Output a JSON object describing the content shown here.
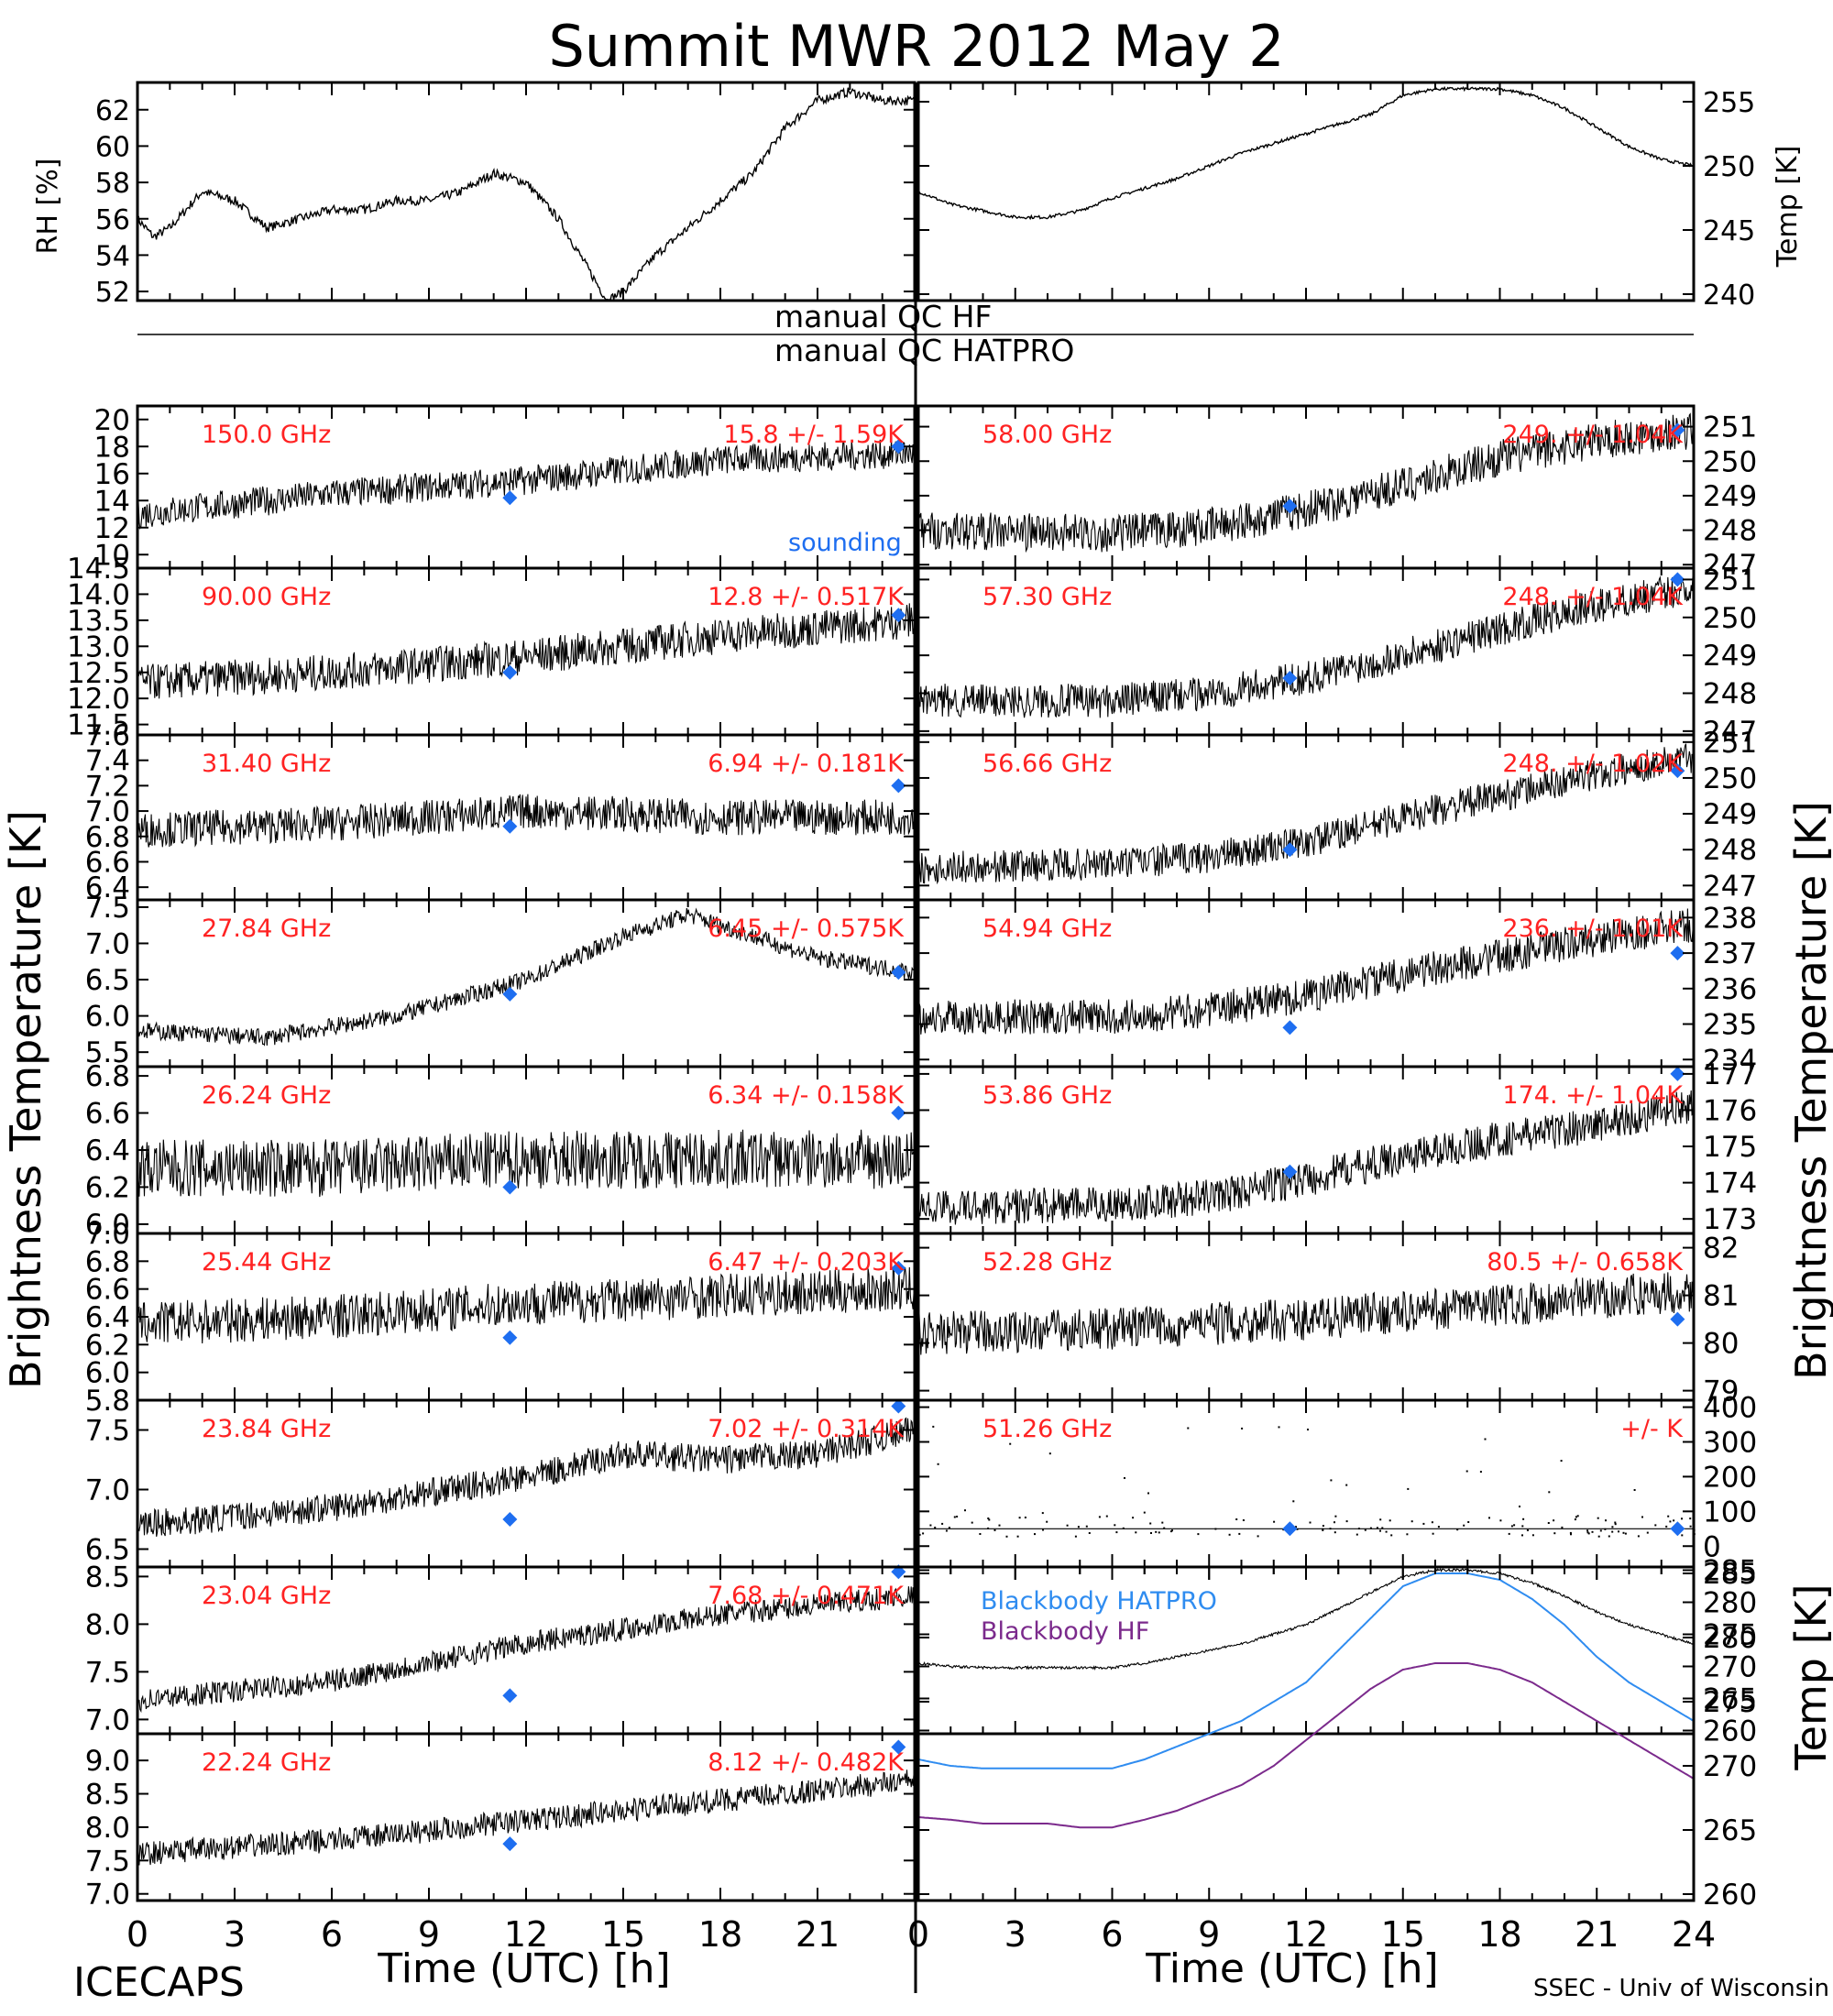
{
  "title": "Summit MWR 2012 May  2",
  "footer": {
    "left": "ICECAPS",
    "right": "SSEC - Univ of Wisconsin"
  },
  "axis_labels": {
    "left_tb": "Brightness Temperature [K]",
    "right_tb": "Brightness Temperature [K]",
    "rh": "RH [%]",
    "temp_top": "Temp [K]",
    "temp_bottom": "Temp [K]",
    "time_left": "Time (UTC) [h]",
    "time_right": "Time (UTC) [h]"
  },
  "qc": {
    "hf": "manual QC HF",
    "hatpro": "manual QC HATPRO"
  },
  "legend": {
    "sounding": "sounding",
    "bb_hatpro": "Blackbody HATPRO",
    "bb_hf": "Blackbody HF"
  },
  "colors": {
    "data": "#000000",
    "label": "#ff2222",
    "sounding": "#1e6ef0",
    "bb_hatpro": "#2f8cf0",
    "bb_hf": "#7b2a8c"
  },
  "x_ticks": [
    "0",
    "3",
    "6",
    "9",
    "12",
    "15",
    "18",
    "21",
    "24"
  ],
  "x_ticks_left": [
    "0",
    "3",
    "6",
    "9",
    "12",
    "15",
    "18",
    "21"
  ],
  "chart_data": [
    {
      "type": "line",
      "panel": "RH",
      "xlim": [
        0,
        24
      ],
      "ylim": [
        51.5,
        63.5
      ],
      "yticks": [
        52,
        54,
        56,
        58,
        60,
        62
      ],
      "series": [
        {
          "x": [
            0,
            0.5,
            1,
            2,
            3,
            4,
            5,
            6,
            7,
            8,
            9,
            10,
            11,
            12,
            13,
            14,
            14.5,
            15,
            16,
            17,
            18,
            19,
            20,
            21,
            22,
            23,
            24
          ],
          "values": [
            56,
            55,
            55.5,
            57.5,
            57,
            55.5,
            56,
            56.5,
            56.5,
            57,
            57,
            57.5,
            58.5,
            58,
            56,
            53,
            51.5,
            52,
            54,
            55.5,
            57,
            58.5,
            61,
            62.5,
            63,
            62.5,
            62.5
          ]
        }
      ]
    },
    {
      "type": "line",
      "panel": "Temp",
      "xlim": [
        0,
        24
      ],
      "ylim": [
        239.5,
        256.5
      ],
      "yticks": [
        240,
        245,
        250,
        255
      ],
      "series": [
        {
          "x": [
            0,
            1,
            2,
            3,
            4,
            5,
            6,
            8,
            10,
            12,
            14,
            15,
            16,
            17,
            18,
            19,
            20,
            21,
            22,
            23,
            24
          ],
          "values": [
            248,
            247,
            246.5,
            246,
            246,
            246.5,
            247.5,
            249,
            251,
            252.5,
            254,
            255.5,
            256,
            256,
            256,
            255.5,
            254.5,
            253,
            251.5,
            250.5,
            250
          ]
        }
      ]
    },
    {
      "type": "scatter",
      "freq": "150.0 GHz",
      "stat": "15.8 +/- 1.59K",
      "xlim": [
        0,
        24
      ],
      "ylim": [
        9,
        21
      ],
      "yticks": [
        10,
        12,
        14,
        16,
        18,
        20
      ],
      "series": [
        {
          "x": [
            0,
            6,
            12,
            18,
            24
          ],
          "values": [
            13,
            14.5,
            15.5,
            17,
            17.5
          ]
        }
      ],
      "sounding": [
        {
          "x": 11.5,
          "y": 14.2
        },
        {
          "x": 23.5,
          "y": 18
        }
      ]
    },
    {
      "type": "scatter",
      "freq": "90.00 GHz",
      "stat": "12.8 +/- 0.517K",
      "xlim": [
        0,
        24
      ],
      "ylim": [
        11.3,
        14.5
      ],
      "yticks": [
        11.5,
        12.0,
        12.5,
        13.0,
        13.5,
        14.0,
        14.5
      ],
      "series": [
        {
          "x": [
            0,
            6,
            12,
            18,
            24
          ],
          "values": [
            12.3,
            12.5,
            12.8,
            13.2,
            13.5
          ]
        }
      ],
      "sounding": [
        {
          "x": 11.5,
          "y": 12.5
        },
        {
          "x": 23.5,
          "y": 13.6
        }
      ]
    },
    {
      "type": "scatter",
      "freq": "31.40 GHz",
      "stat": "6.94 +/- 0.181K",
      "xlim": [
        0,
        24
      ],
      "ylim": [
        6.3,
        7.6
      ],
      "yticks": [
        6.4,
        6.6,
        6.8,
        7.0,
        7.2,
        7.4,
        7.6
      ],
      "series": [
        {
          "x": [
            0,
            6,
            12,
            18,
            24
          ],
          "values": [
            6.85,
            6.9,
            7.0,
            6.95,
            6.95
          ]
        }
      ],
      "sounding": [
        {
          "x": 11.5,
          "y": 6.88
        },
        {
          "x": 23.5,
          "y": 7.2
        }
      ]
    },
    {
      "type": "scatter",
      "freq": "27.84 GHz",
      "stat": "6.45 +/- 0.575K",
      "xlim": [
        0,
        24
      ],
      "ylim": [
        5.3,
        7.6
      ],
      "yticks": [
        5.5,
        6.0,
        6.5,
        7.0,
        7.5
      ],
      "series": [
        {
          "x": [
            0,
            4,
            8,
            12,
            15,
            17,
            19,
            21,
            24
          ],
          "values": [
            5.8,
            5.7,
            6.0,
            6.5,
            7.1,
            7.4,
            7.1,
            6.8,
            6.6
          ]
        }
      ],
      "sounding": [
        {
          "x": 11.5,
          "y": 6.3
        },
        {
          "x": 23.5,
          "y": 6.6
        }
      ]
    },
    {
      "type": "scatter",
      "freq": "26.24 GHz",
      "stat": "6.34 +/- 0.158K",
      "xlim": [
        0,
        24
      ],
      "ylim": [
        5.95,
        6.85
      ],
      "yticks": [
        6.0,
        6.2,
        6.4,
        6.6,
        6.8
      ],
      "series": [
        {
          "x": [
            0,
            6,
            12,
            18,
            24
          ],
          "values": [
            6.3,
            6.3,
            6.35,
            6.35,
            6.35
          ]
        }
      ],
      "sounding": [
        {
          "x": 11.5,
          "y": 6.2
        },
        {
          "x": 23.5,
          "y": 6.6
        }
      ]
    },
    {
      "type": "scatter",
      "freq": "25.44 GHz",
      "stat": "6.47 +/- 0.203K",
      "xlim": [
        0,
        24
      ],
      "ylim": [
        5.8,
        7.0
      ],
      "yticks": [
        5.8,
        6.0,
        6.2,
        6.4,
        6.6,
        6.8,
        7.0
      ],
      "series": [
        {
          "x": [
            0,
            6,
            12,
            18,
            24
          ],
          "values": [
            6.35,
            6.4,
            6.5,
            6.55,
            6.6
          ]
        }
      ],
      "sounding": [
        {
          "x": 11.5,
          "y": 6.25
        },
        {
          "x": 23.5,
          "y": 6.75
        }
      ]
    },
    {
      "type": "scatter",
      "freq": "23.84 GHz",
      "stat": "7.02 +/- 0.314K",
      "xlim": [
        0,
        24
      ],
      "ylim": [
        6.35,
        7.75
      ],
      "yticks": [
        6.5,
        7.0,
        7.5
      ],
      "series": [
        {
          "x": [
            0,
            6,
            12,
            15,
            18,
            21,
            24
          ],
          "values": [
            6.7,
            6.85,
            7.1,
            7.3,
            7.25,
            7.3,
            7.5
          ]
        }
      ],
      "sounding": [
        {
          "x": 11.5,
          "y": 6.75
        },
        {
          "x": 23.5,
          "y": 7.7
        }
      ]
    },
    {
      "type": "scatter",
      "freq": "23.04 GHz",
      "stat": "7.68 +/- 0.471K",
      "xlim": [
        0,
        24
      ],
      "ylim": [
        6.85,
        8.6
      ],
      "yticks": [
        7.0,
        7.5,
        8.0,
        8.5
      ],
      "series": [
        {
          "x": [
            0,
            6,
            12,
            18,
            24
          ],
          "values": [
            7.2,
            7.4,
            7.8,
            8.1,
            8.3
          ]
        }
      ],
      "sounding": [
        {
          "x": 11.5,
          "y": 7.25
        },
        {
          "x": 23.5,
          "y": 8.55
        }
      ]
    },
    {
      "type": "scatter",
      "freq": "22.24 GHz",
      "stat": "8.12 +/- 0.482K",
      "xlim": [
        0,
        24
      ],
      "ylim": [
        6.9,
        9.4
      ],
      "yticks": [
        7.0,
        7.5,
        8.0,
        8.5,
        9.0
      ],
      "series": [
        {
          "x": [
            0,
            6,
            12,
            18,
            24
          ],
          "values": [
            7.6,
            7.8,
            8.1,
            8.4,
            8.7
          ]
        }
      ],
      "sounding": [
        {
          "x": 11.5,
          "y": 7.75
        },
        {
          "x": 23.5,
          "y": 9.2
        }
      ]
    },
    {
      "type": "scatter",
      "freq": "58.00 GHz",
      "stat": "249. +/- 1.04K",
      "xlim": [
        0,
        24
      ],
      "ylim": [
        246.9,
        251.6
      ],
      "yticks": [
        247,
        248,
        249,
        250,
        251
      ],
      "series": [
        {
          "x": [
            0,
            6,
            9,
            12,
            15,
            18,
            21,
            24
          ],
          "values": [
            248,
            247.9,
            248.1,
            248.6,
            249.3,
            250.1,
            250.6,
            250.9
          ]
        }
      ],
      "sounding": [
        {
          "x": 11.5,
          "y": 248.7
        },
        {
          "x": 23.5,
          "y": 250.9
        }
      ]
    },
    {
      "type": "scatter",
      "freq": "57.30 GHz",
      "stat": "248. +/- 1.04K",
      "xlim": [
        0,
        24
      ],
      "ylim": [
        246.9,
        251.3
      ],
      "yticks": [
        247,
        248,
        249,
        250,
        251
      ],
      "series": [
        {
          "x": [
            0,
            6,
            9,
            12,
            15,
            18,
            21,
            24
          ],
          "values": [
            247.8,
            247.8,
            248.0,
            248.4,
            249.0,
            249.7,
            250.3,
            250.8
          ]
        }
      ],
      "sounding": [
        {
          "x": 11.5,
          "y": 248.4
        },
        {
          "x": 23.5,
          "y": 251
        }
      ]
    },
    {
      "type": "scatter",
      "freq": "56.66 GHz",
      "stat": "248. +/- 1.02K",
      "xlim": [
        0,
        24
      ],
      "ylim": [
        246.6,
        251.2
      ],
      "yticks": [
        247,
        248,
        249,
        250,
        251
      ],
      "series": [
        {
          "x": [
            0,
            6,
            9,
            12,
            15,
            18,
            21,
            24
          ],
          "values": [
            247.5,
            247.6,
            247.8,
            248.2,
            248.9,
            249.5,
            250.1,
            250.6
          ]
        }
      ],
      "sounding": [
        {
          "x": 11.5,
          "y": 248
        },
        {
          "x": 23.5,
          "y": 250.2
        }
      ]
    },
    {
      "type": "scatter",
      "freq": "54.94 GHz",
      "stat": "236. +/- 1.01K",
      "xlim": [
        0,
        24
      ],
      "ylim": [
        233.8,
        238.5
      ],
      "yticks": [
        234,
        235,
        236,
        237,
        238
      ],
      "series": [
        {
          "x": [
            0,
            6,
            9,
            12,
            15,
            18,
            21,
            24
          ],
          "values": [
            235.2,
            235.2,
            235.4,
            235.8,
            236.4,
            236.9,
            237.4,
            237.8
          ]
        }
      ],
      "sounding": [
        {
          "x": 11.5,
          "y": 234.9
        },
        {
          "x": 23.5,
          "y": 237
        }
      ]
    },
    {
      "type": "scatter",
      "freq": "53.86 GHz",
      "stat": "174. +/- 1.04K",
      "xlim": [
        0,
        24
      ],
      "ylim": [
        172.6,
        177.2
      ],
      "yticks": [
        173,
        174,
        175,
        176,
        177
      ],
      "series": [
        {
          "x": [
            0,
            6,
            9,
            12,
            15,
            18,
            21,
            24
          ],
          "values": [
            173.3,
            173.4,
            173.6,
            174.1,
            174.7,
            175.2,
            175.6,
            176.1
          ]
        }
      ],
      "sounding": [
        {
          "x": 11.5,
          "y": 174.3
        },
        {
          "x": 23.5,
          "y": 177
        }
      ]
    },
    {
      "type": "scatter",
      "freq": "52.28 GHz",
      "stat": "80.5 +/- 0.658K",
      "xlim": [
        0,
        24
      ],
      "ylim": [
        78.8,
        82.3
      ],
      "yticks": [
        79,
        80,
        81,
        82
      ],
      "series": [
        {
          "x": [
            0,
            6,
            12,
            18,
            24
          ],
          "values": [
            80.2,
            80.3,
            80.5,
            80.8,
            81.1
          ]
        }
      ],
      "sounding": [
        {
          "x": 11.5,
          "y": null
        },
        {
          "x": 23.5,
          "y": 80.5
        }
      ]
    },
    {
      "type": "scatter",
      "freq": "51.26 GHz",
      "stat": "+/-        K",
      "xlim": [
        0,
        24
      ],
      "ylim": [
        -60,
        420
      ],
      "yticks": [
        0,
        100,
        200,
        300,
        400
      ],
      "series": [
        {
          "x": [
            0,
            24
          ],
          "values": [
            50,
            50
          ]
        }
      ],
      "sounding": [
        {
          "x": 11.5,
          "y": 50
        },
        {
          "x": 23.5,
          "y": 50
        }
      ]
    },
    {
      "type": "line",
      "panel": "Blackbody",
      "xlim": [
        0,
        24
      ],
      "ylim": [
        259.5,
        285.5
      ],
      "yticks": [
        260,
        265,
        270,
        275,
        280,
        285
      ],
      "series": [
        {
          "name": "Blackbody HATPRO",
          "x": [
            0,
            1,
            2,
            3,
            4,
            5,
            6,
            7,
            8,
            9,
            10,
            11,
            12,
            13,
            14,
            15,
            16,
            17,
            18,
            19,
            20,
            21,
            22,
            23,
            24
          ],
          "values": [
            270.5,
            270,
            269.8,
            269.8,
            269.8,
            269.8,
            269.8,
            270.5,
            271.5,
            272.5,
            273.5,
            275,
            276.5,
            279,
            281.5,
            284,
            285,
            285,
            284.5,
            283,
            281,
            278.5,
            276.5,
            275,
            273.5
          ]
        },
        {
          "name": "Blackbody HF",
          "x": [
            0,
            1,
            2,
            3,
            4,
            5,
            6,
            7,
            8,
            9,
            10,
            11,
            12,
            13,
            14,
            15,
            16,
            17,
            18,
            19,
            20,
            21,
            22,
            23,
            24
          ],
          "values": [
            266,
            265.8,
            265.5,
            265.5,
            265.5,
            265.2,
            265.2,
            265.8,
            266.5,
            267.5,
            268.5,
            270,
            272,
            274,
            276,
            277.5,
            278,
            278,
            277.5,
            276.5,
            275,
            273.5,
            272,
            270.5,
            269
          ]
        }
      ]
    }
  ]
}
